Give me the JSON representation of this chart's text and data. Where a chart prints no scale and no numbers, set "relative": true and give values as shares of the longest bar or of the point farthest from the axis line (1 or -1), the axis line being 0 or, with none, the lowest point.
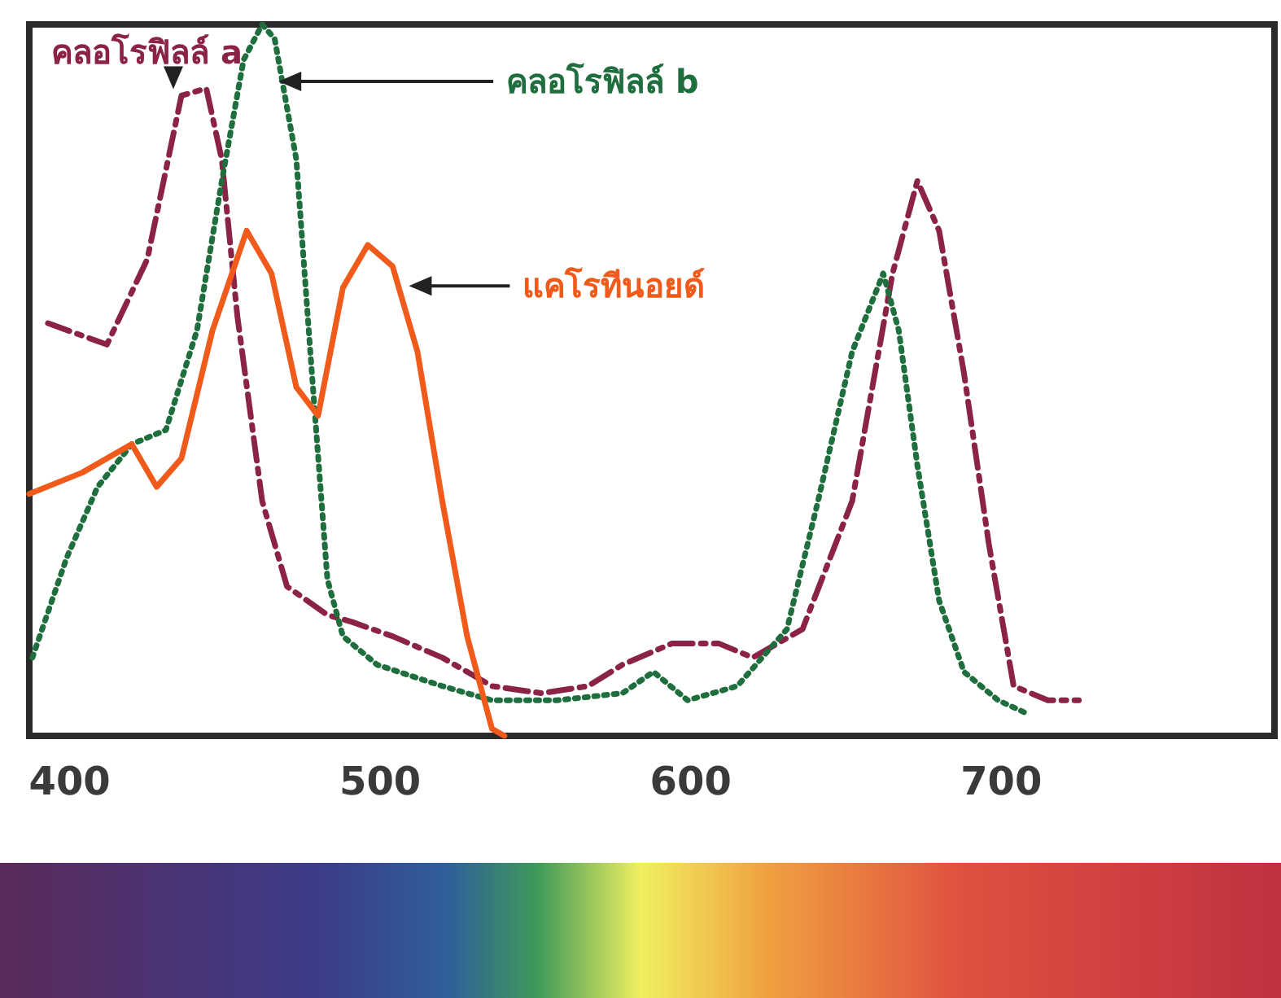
{
  "chart_data": {
    "type": "line",
    "relative": true,
    "xlim": [
      387,
      788
    ],
    "xticks": [
      400,
      500,
      600,
      700
    ],
    "tick_labels": "x",
    "grid": false,
    "legend": false,
    "marker": "none",
    "series": [
      {
        "name": "คลอโรฟิลล์ a",
        "color": "#8b2346",
        "line_style": "dashed",
        "x": [
          393,
          412,
          425,
          436,
          444,
          449,
          454,
          462,
          470,
          483,
          491,
          504,
          520,
          536,
          552,
          567,
          578,
          594,
          609,
          620,
          636,
          652,
          665,
          673,
          680,
          688,
          696,
          704,
          715,
          725
        ],
        "values": [
          0.58,
          0.55,
          0.67,
          0.9,
          0.91,
          0.81,
          0.59,
          0.33,
          0.21,
          0.17,
          0.16,
          0.14,
          0.11,
          0.07,
          0.06,
          0.07,
          0.1,
          0.13,
          0.13,
          0.11,
          0.15,
          0.33,
          0.65,
          0.78,
          0.71,
          0.51,
          0.27,
          0.07,
          0.05,
          0.05
        ]
      },
      {
        "name": "คลอโรฟิลล์ b",
        "color": "#1f6e3e",
        "line_style": "dotted",
        "x": [
          388,
          399,
          409,
          420,
          431,
          441,
          449,
          456,
          462,
          466,
          473,
          478,
          483,
          488,
          499,
          520,
          536,
          557,
          578,
          588,
          599,
          615,
          631,
          641,
          652,
          662,
          667,
          673,
          680,
          688,
          699,
          709
        ],
        "values": [
          0.11,
          0.25,
          0.35,
          0.41,
          0.43,
          0.57,
          0.78,
          0.95,
          1,
          0.98,
          0.81,
          0.51,
          0.22,
          0.14,
          0.1,
          0.07,
          0.05,
          0.05,
          0.06,
          0.09,
          0.05,
          0.07,
          0.15,
          0.33,
          0.54,
          0.65,
          0.57,
          0.38,
          0.19,
          0.09,
          0.05,
          0.03
        ]
      },
      {
        "name": "แคโรทีนอยด์",
        "color": "#f05a1a",
        "line_style": "solid",
        "x": [
          387,
          404,
          420,
          428,
          436,
          446,
          457,
          465,
          473,
          480,
          488,
          496,
          504,
          512,
          520,
          528,
          536,
          540
        ],
        "values": [
          0.34,
          0.37,
          0.41,
          0.35,
          0.39,
          0.57,
          0.71,
          0.65,
          0.49,
          0.45,
          0.63,
          0.69,
          0.66,
          0.54,
          0.33,
          0.14,
          0.01,
          0
        ]
      }
    ]
  }
}
